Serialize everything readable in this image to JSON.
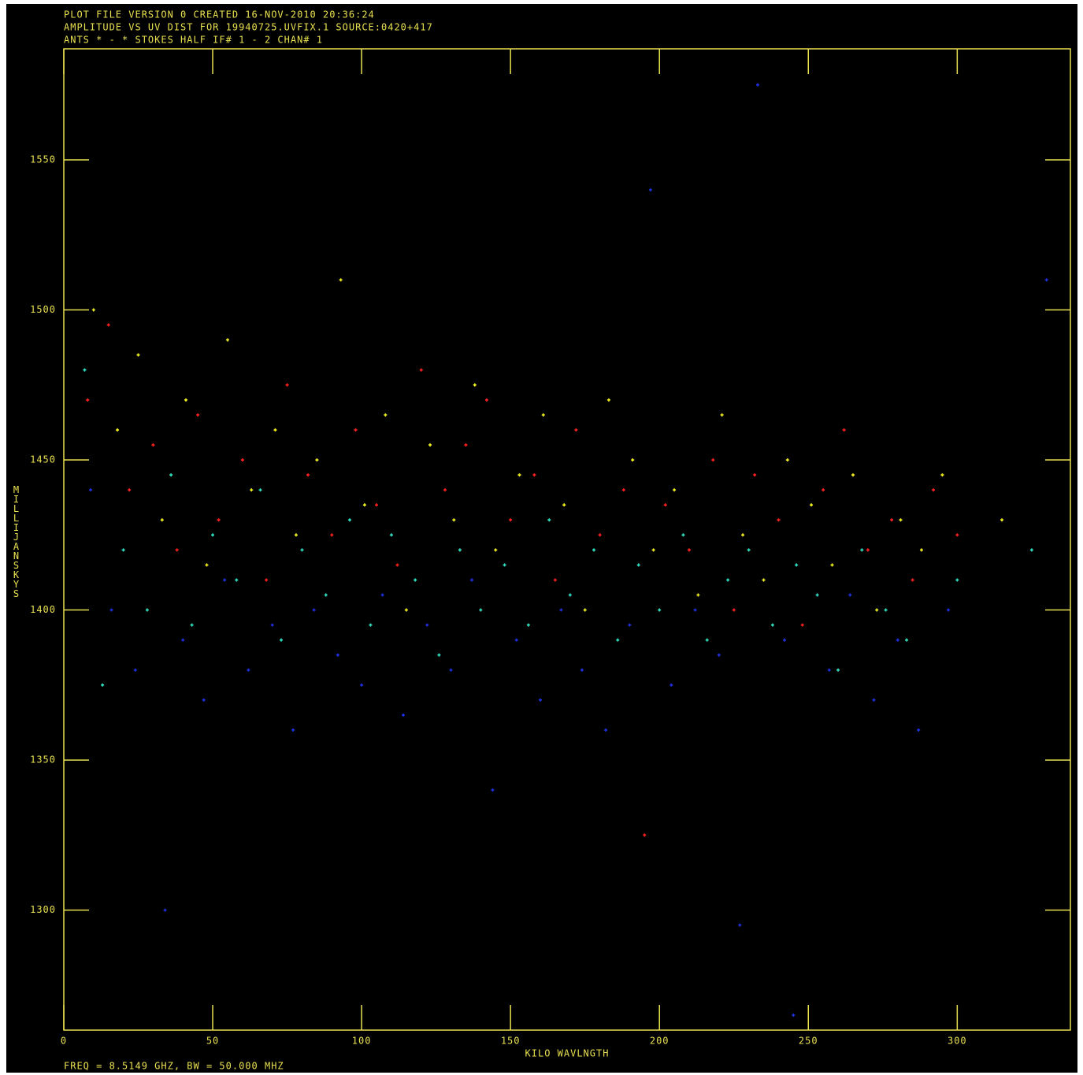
{
  "chart_data": {
    "type": "scatter",
    "header_lines": [
      "PLOT FILE VERSION 0  CREATED 16-NOV-2010 20:36:24",
      "AMPLITUDE VS UV DIST FOR 19940725.UVFIX.1   SOURCE:0420+417",
      "ANTS * - *    STOKES HALF  IF# 1 - 2  CHAN# 1"
    ],
    "xlabel": "KILO WAVLNGTH",
    "ylabel": "MILLIJANSKYS",
    "footnote": "FREQ = 8.5149 GHZ, BW = 50.000 MHZ",
    "xlim": [
      0,
      338
    ],
    "ylim": [
      1260,
      1587
    ],
    "xticks": [
      0,
      50,
      100,
      150,
      200,
      250,
      300
    ],
    "yticks": [
      1300,
      1350,
      1400,
      1450,
      1500,
      1550
    ],
    "frame_color": "#e8e050",
    "series": [
      {
        "color": "#ff2020",
        "x": [
          8,
          15,
          22,
          30,
          38,
          45,
          52,
          60,
          68,
          75,
          82,
          90,
          98,
          105,
          112,
          120,
          128,
          135,
          142,
          150,
          158,
          165,
          172,
          180,
          188,
          195,
          202,
          210,
          218,
          225,
          232,
          240,
          248,
          255,
          262,
          270,
          278,
          285,
          292,
          300
        ],
        "y": [
          1470,
          1495,
          1440,
          1455,
          1420,
          1465,
          1430,
          1450,
          1410,
          1475,
          1445,
          1425,
          1460,
          1435,
          1415,
          1480,
          1440,
          1455,
          1470,
          1430,
          1445,
          1410,
          1460,
          1425,
          1440,
          1325,
          1435,
          1420,
          1450,
          1400,
          1445,
          1430,
          1395,
          1440,
          1460,
          1420,
          1430,
          1410,
          1440,
          1425
        ]
      },
      {
        "color": "#f0f020",
        "x": [
          10,
          18,
          25,
          33,
          41,
          48,
          55,
          63,
          71,
          78,
          85,
          93,
          101,
          108,
          115,
          123,
          131,
          138,
          145,
          153,
          161,
          168,
          175,
          183,
          191,
          198,
          205,
          213,
          221,
          228,
          235,
          243,
          251,
          258,
          265,
          273,
          281,
          288,
          295,
          315
        ],
        "y": [
          1500,
          1460,
          1485,
          1430,
          1470,
          1415,
          1490,
          1440,
          1460,
          1425,
          1450,
          1510,
          1435,
          1465,
          1400,
          1455,
          1430,
          1475,
          1420,
          1445,
          1465,
          1435,
          1400,
          1470,
          1450,
          1420,
          1440,
          1405,
          1465,
          1425,
          1410,
          1450,
          1435,
          1415,
          1445,
          1400,
          1430,
          1420,
          1445,
          1430
        ]
      },
      {
        "color": "#30e0c0",
        "x": [
          7,
          13,
          20,
          28,
          36,
          43,
          50,
          58,
          66,
          73,
          80,
          88,
          96,
          103,
          110,
          118,
          126,
          133,
          140,
          148,
          156,
          163,
          170,
          178,
          186,
          193,
          200,
          208,
          216,
          223,
          230,
          238,
          246,
          253,
          260,
          268,
          276,
          283,
          300,
          325
        ],
        "y": [
          1480,
          1375,
          1420,
          1400,
          1445,
          1395,
          1425,
          1410,
          1440,
          1390,
          1420,
          1405,
          1430,
          1395,
          1425,
          1410,
          1385,
          1420,
          1400,
          1415,
          1395,
          1430,
          1405,
          1420,
          1390,
          1415,
          1400,
          1425,
          1390,
          1410,
          1420,
          1395,
          1415,
          1405,
          1380,
          1420,
          1400,
          1390,
          1410,
          1420
        ]
      },
      {
        "color": "#2030e0",
        "x": [
          9,
          16,
          24,
          34,
          40,
          47,
          54,
          62,
          70,
          77,
          84,
          92,
          100,
          107,
          114,
          122,
          130,
          137,
          144,
          152,
          160,
          167,
          174,
          182,
          190,
          197,
          204,
          212,
          220,
          227,
          233,
          242,
          245,
          257,
          264,
          272,
          280,
          287,
          297,
          330
        ],
        "y": [
          1440,
          1400,
          1380,
          1300,
          1390,
          1370,
          1410,
          1380,
          1395,
          1360,
          1400,
          1385,
          1375,
          1405,
          1365,
          1395,
          1380,
          1410,
          1340,
          1390,
          1370,
          1400,
          1380,
          1360,
          1395,
          1540,
          1375,
          1400,
          1385,
          1295,
          1575,
          1390,
          1265,
          1380,
          1405,
          1370,
          1390,
          1360,
          1400,
          1510
        ]
      }
    ]
  }
}
